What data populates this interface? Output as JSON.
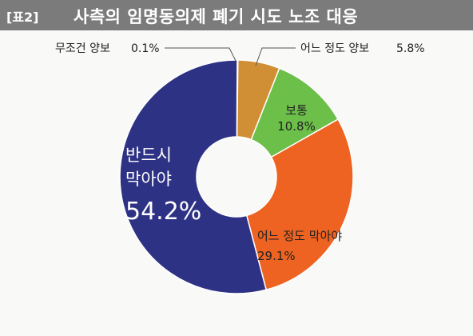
{
  "header": {
    "tag": "[표2]",
    "title": "사측의 임명동의제 폐기 시도 노조 대응"
  },
  "colors": {
    "title_bar": "#7b7b7b",
    "slice_1": "#2e3284",
    "slice_2": "#d08f35",
    "slice_3": "#6cbf49",
    "slice_4": "#ee6321",
    "slice_5": "#2e3284"
  },
  "chart_data": {
    "type": "pie",
    "donut": true,
    "slices": [
      {
        "label": "무조건 양보",
        "value": 0.1,
        "value_text": "0.1%"
      },
      {
        "label": "어느 정도 양보",
        "value": 5.8,
        "value_text": "5.8%"
      },
      {
        "label": "보통",
        "value": 10.8,
        "value_text": "10.8%"
      },
      {
        "label": "어느 정도 막아야",
        "value": 29.1,
        "value_text": "29.1%"
      },
      {
        "label": "반드시 막아야",
        "label_lines": [
          "반드시",
          "막아야"
        ],
        "value": 54.2,
        "value_text": "54.2%"
      }
    ]
  }
}
